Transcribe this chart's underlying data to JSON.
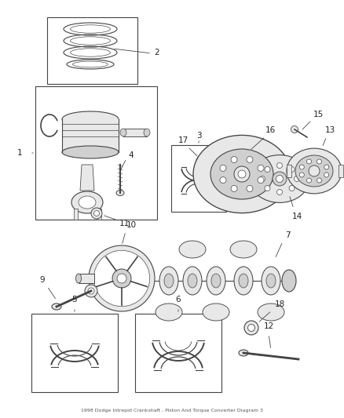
{
  "title": "1998 Dodge Intrepid Crankshaft , Piston And Torque Converter Diagram 3",
  "bg_color": "#ffffff",
  "lc": "#444444",
  "lc_light": "#888888",
  "lc_dark": "#222222",
  "box_fill": "#ffffff",
  "part_fill": "#e8e8e8",
  "part_fill2": "#d0d0d0",
  "label_fs": 7.5,
  "title_fs": 4.5
}
